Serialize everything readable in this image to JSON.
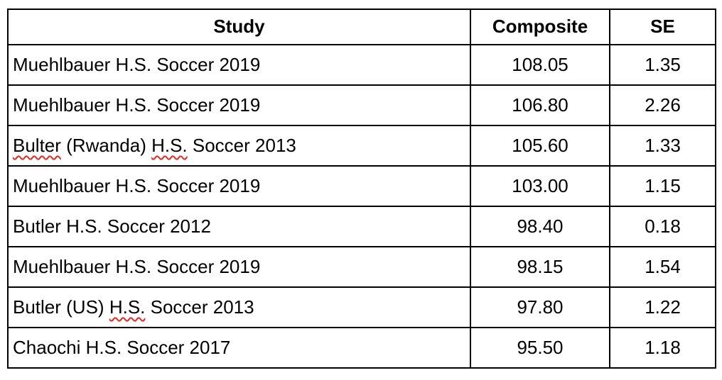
{
  "colors": {
    "table_border": "#000000",
    "spellcheck_underline": "#e02b20",
    "background": "#ffffff",
    "text": "#000000"
  },
  "table": {
    "columns": [
      {
        "key": "study",
        "label": "Study"
      },
      {
        "key": "composite",
        "label": "Composite"
      },
      {
        "key": "se",
        "label": "SE"
      }
    ],
    "rows": [
      {
        "study": [
          {
            "text": "Muehlbauer H.S. Soccer 2019",
            "misspelled": false
          }
        ],
        "composite": "108.05",
        "se": "1.35"
      },
      {
        "study": [
          {
            "text": "Muehlbauer H.S. Soccer 2019",
            "misspelled": false
          }
        ],
        "composite": "106.80",
        "se": "2.26"
      },
      {
        "study": [
          {
            "text": "Bulter",
            "misspelled": true
          },
          {
            "text": " (Rwanda) ",
            "misspelled": false
          },
          {
            "text": "H.S.",
            "misspelled": true
          },
          {
            "text": " Soccer 2013",
            "misspelled": false
          }
        ],
        "composite": "105.60",
        "se": "1.33"
      },
      {
        "study": [
          {
            "text": "Muehlbauer H.S. Soccer 2019",
            "misspelled": false
          }
        ],
        "composite": "103.00",
        "se": "1.15"
      },
      {
        "study": [
          {
            "text": "Butler H.S. Soccer 2012",
            "misspelled": false
          }
        ],
        "composite": "98.40",
        "se": "0.18"
      },
      {
        "study": [
          {
            "text": "Muehlbauer H.S. Soccer 2019",
            "misspelled": false
          }
        ],
        "composite": "98.15",
        "se": "1.54"
      },
      {
        "study": [
          {
            "text": "Butler (US) ",
            "misspelled": false
          },
          {
            "text": "H.S.",
            "misspelled": true
          },
          {
            "text": " Soccer 2013",
            "misspelled": false
          }
        ],
        "composite": "97.80",
        "se": "1.22"
      },
      {
        "study": [
          {
            "text": "Chaochi H.S. Soccer 2017",
            "misspelled": false
          }
        ],
        "composite": "95.50",
        "se": "1.18"
      }
    ]
  }
}
